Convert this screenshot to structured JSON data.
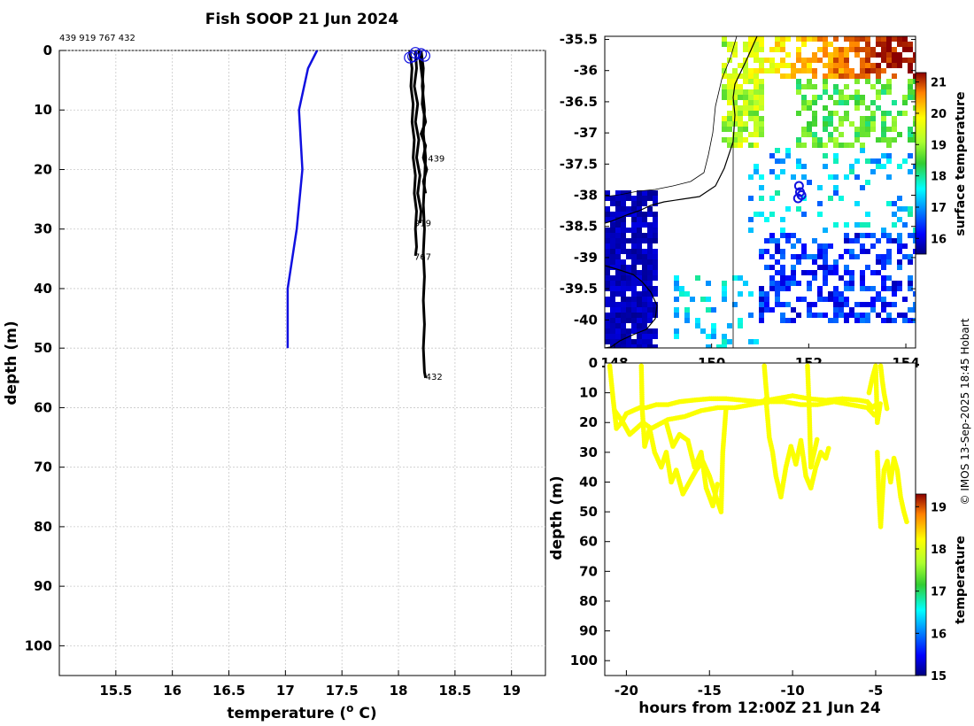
{
  "title": "Fish SOOP 21 Jun 2024",
  "profile_ids_text": "439 919 767 432",
  "credit": "© IMOS 13-Sep-2025 18:45 Hobart",
  "chart_data": [
    {
      "id": "profile",
      "type": "line",
      "xlabel_prefix": "temperature (",
      "xlabel_sup": "o",
      "xlabel_suffix": " C)",
      "ylabel": "depth (m)",
      "xlim": [
        15,
        19.3
      ],
      "ylim": [
        0,
        105
      ],
      "y_inverted": true,
      "grid": true,
      "xticks": [
        15.5,
        16,
        16.5,
        17,
        17.5,
        18,
        18.5,
        19
      ],
      "yticks": [
        0,
        10,
        20,
        30,
        40,
        50,
        60,
        70,
        80,
        90,
        100
      ],
      "climatology": {
        "name": "climatology",
        "color": "#1010e0",
        "points": [
          [
            17.28,
            0
          ],
          [
            17.2,
            3
          ],
          [
            17.12,
            10
          ],
          [
            17.15,
            20
          ],
          [
            17.1,
            30
          ],
          [
            17.02,
            40
          ],
          [
            17.02,
            50
          ]
        ]
      },
      "profiles": [
        {
          "id": "439",
          "label": "439",
          "label_at": [
            18.26,
            18.7
          ],
          "points": [
            [
              18.18,
              0
            ],
            [
              18.2,
              3
            ],
            [
              18.22,
              6
            ],
            [
              18.21,
              9
            ],
            [
              18.24,
              12
            ],
            [
              18.2,
              14
            ],
            [
              18.24,
              16
            ],
            [
              18.22,
              18
            ],
            [
              18.25,
              20
            ],
            [
              18.22,
              22
            ],
            [
              18.24,
              24
            ]
          ]
        },
        {
          "id": "919",
          "label": "919",
          "label_at": [
            18.14,
            29.5
          ],
          "points": [
            [
              18.15,
              0
            ],
            [
              18.16,
              3
            ],
            [
              18.14,
              6
            ],
            [
              18.17,
              9
            ],
            [
              18.15,
              12
            ],
            [
              18.18,
              15
            ],
            [
              18.16,
              18
            ],
            [
              18.19,
              21
            ],
            [
              18.17,
              24
            ],
            [
              18.2,
              27
            ],
            [
              18.19,
              29
            ]
          ]
        },
        {
          "id": "767",
          "label": "767",
          "label_at": [
            18.14,
            35.2
          ],
          "points": [
            [
              18.1,
              0
            ],
            [
              18.12,
              3
            ],
            [
              18.11,
              6
            ],
            [
              18.13,
              9
            ],
            [
              18.12,
              12
            ],
            [
              18.14,
              15
            ],
            [
              18.13,
              18
            ],
            [
              18.15,
              21
            ],
            [
              18.14,
              24
            ],
            [
              18.16,
              27
            ],
            [
              18.15,
              30
            ],
            [
              18.16,
              33
            ],
            [
              18.15,
              34.5
            ]
          ]
        },
        {
          "id": "432",
          "label": "432",
          "label_at": [
            18.24,
            55.3
          ],
          "points": [
            [
              18.2,
              0
            ],
            [
              18.22,
              3
            ],
            [
              18.21,
              6
            ],
            [
              18.23,
              10
            ],
            [
              18.22,
              14
            ],
            [
              18.24,
              18
            ],
            [
              18.23,
              22
            ],
            [
              18.22,
              26
            ],
            [
              18.23,
              30
            ],
            [
              18.22,
              34
            ],
            [
              18.23,
              38
            ],
            [
              18.22,
              42
            ],
            [
              18.23,
              46
            ],
            [
              18.22,
              50
            ],
            [
              18.23,
              54
            ],
            [
              18.24,
              55
            ]
          ]
        }
      ],
      "start_markers": [
        [
          18.1,
          1.2
        ],
        [
          18.13,
          1.0
        ],
        [
          18.2,
          0.6
        ],
        [
          18.23,
          0.9
        ],
        [
          18.15,
          0.4
        ]
      ]
    },
    {
      "id": "map",
      "type": "heatmap",
      "colorbar_label": "surface temperature",
      "colorbar_range": [
        15.5,
        21.3
      ],
      "colorbar_ticks": [
        16,
        17,
        18,
        19,
        20,
        21
      ],
      "xlim": [
        147.8,
        154.2
      ],
      "ylim": [
        -40.45,
        -35.45
      ],
      "xticks": [
        148,
        150,
        152,
        154
      ],
      "xtick_labels": [
        "148",
        "150",
        "152",
        "154"
      ],
      "yticks": [
        -35.5,
        -36,
        -36.5,
        -37,
        -37.5,
        -38,
        -38.5,
        -39,
        -39.5,
        -40
      ],
      "profile_locations": [
        [
          151.8,
          -37.85
        ],
        [
          151.78,
          -38.05
        ],
        [
          151.85,
          -38.0
        ],
        [
          151.82,
          -37.95
        ]
      ],
      "track_color": "#1010e0"
    },
    {
      "id": "timeseries",
      "type": "scatter",
      "xlabel": "hours from 12:00Z 21 Jun 24",
      "ylabel": "depth (m)",
      "colorbar_label": "temperature",
      "colorbar_range": [
        15,
        19.3
      ],
      "colorbar_ticks": [
        15,
        16,
        17,
        18,
        19
      ],
      "xlim": [
        -21.3,
        -2.6
      ],
      "ylim": [
        0,
        105
      ],
      "y_inverted": true,
      "xticks": [
        -20,
        -15,
        -10,
        -5
      ],
      "yticks": [
        0,
        10,
        20,
        30,
        40,
        50,
        60,
        70,
        80,
        90,
        100
      ],
      "point_temperature": 18.2,
      "segments": [
        [
          [
            -21,
            1
          ],
          [
            -20.8,
            12
          ],
          [
            -20.6,
            22
          ],
          [
            -20.3,
            20
          ],
          [
            -20.0,
            17
          ],
          [
            -19.6,
            16
          ],
          [
            -19.2,
            15
          ],
          [
            -18.8,
            15
          ],
          [
            -18.2,
            14
          ],
          [
            -17.5,
            14
          ],
          [
            -16.8,
            13
          ],
          [
            -16.0,
            12.5
          ],
          [
            -15.0,
            12
          ],
          [
            -14.0,
            12
          ],
          [
            -13.0,
            12.5
          ],
          [
            -12.0,
            13
          ],
          [
            -11.0,
            12
          ],
          [
            -10.0,
            11
          ],
          [
            -9.0,
            12
          ],
          [
            -8.0,
            12.5
          ],
          [
            -7.0,
            12
          ],
          [
            -6.0,
            12.5
          ],
          [
            -5.5,
            13
          ],
          [
            -5.2,
            15
          ],
          [
            -5.0,
            14
          ]
        ],
        [
          [
            -20.7,
            16
          ],
          [
            -20.2,
            20
          ],
          [
            -19.8,
            24
          ],
          [
            -19.0,
            20
          ],
          [
            -18.5,
            22
          ],
          [
            -17.5,
            19
          ],
          [
            -16.5,
            18
          ],
          [
            -15.5,
            16
          ],
          [
            -14.5,
            15
          ],
          [
            -13.5,
            15
          ],
          [
            -12.5,
            14
          ],
          [
            -11.5,
            13
          ],
          [
            -10.5,
            13
          ],
          [
            -9.5,
            14
          ],
          [
            -8.5,
            14
          ],
          [
            -7.5,
            13
          ],
          [
            -6.5,
            14
          ],
          [
            -5.5,
            15
          ],
          [
            -5.0,
            18
          ]
        ],
        [
          [
            -19.1,
            1
          ],
          [
            -19.05,
            15
          ],
          [
            -18.9,
            28
          ],
          [
            -18.6,
            22
          ],
          [
            -18.3,
            30
          ],
          [
            -17.9,
            35
          ],
          [
            -17.6,
            30
          ],
          [
            -17.3,
            40
          ],
          [
            -17.0,
            36
          ],
          [
            -16.6,
            44
          ],
          [
            -16.2,
            40
          ],
          [
            -15.8,
            36
          ],
          [
            -15.4,
            33
          ],
          [
            -15.0,
            38
          ],
          [
            -14.6,
            45
          ],
          [
            -14.3,
            50
          ],
          [
            -14.2,
            30
          ],
          [
            -14.0,
            15
          ]
        ],
        [
          [
            -17.6,
            20
          ],
          [
            -17.2,
            28
          ],
          [
            -16.8,
            24
          ],
          [
            -16.3,
            26
          ],
          [
            -15.9,
            35
          ],
          [
            -15.5,
            30
          ],
          [
            -15.2,
            42
          ],
          [
            -14.8,
            48
          ],
          [
            -14.5,
            40
          ]
        ],
        [
          [
            -11.6,
            12
          ],
          [
            -11.4,
            25
          ],
          [
            -11.2,
            30
          ],
          [
            -11.0,
            38
          ],
          [
            -10.7,
            45
          ],
          [
            -10.4,
            35
          ],
          [
            -10.1,
            28
          ],
          [
            -9.8,
            34
          ],
          [
            -9.5,
            26
          ],
          [
            -9.2,
            38
          ],
          [
            -8.9,
            42
          ],
          [
            -8.6,
            35
          ],
          [
            -8.3,
            30
          ],
          [
            -8.0,
            32
          ],
          [
            -7.8,
            28
          ]
        ],
        [
          [
            -9.1,
            1
          ],
          [
            -9.0,
            15
          ],
          [
            -8.9,
            35
          ],
          [
            -8.7,
            30
          ],
          [
            -8.5,
            25
          ]
        ],
        [
          [
            -11.7,
            1
          ],
          [
            -11.6,
            8
          ],
          [
            -11.5,
            14
          ]
        ],
        [
          [
            -5.4,
            10
          ],
          [
            -5.2,
            5
          ],
          [
            -5.0,
            1
          ],
          [
            -4.9,
            20
          ],
          [
            -4.7,
            13
          ]
        ],
        [
          [
            -4.9,
            30
          ],
          [
            -4.8,
            45
          ],
          [
            -4.7,
            55
          ],
          [
            -4.5,
            36
          ],
          [
            -4.3,
            33
          ],
          [
            -4.1,
            40
          ],
          [
            -3.9,
            32
          ],
          [
            -3.7,
            36
          ],
          [
            -3.5,
            45
          ],
          [
            -3.3,
            50
          ],
          [
            -3.1,
            54
          ]
        ],
        [
          [
            -4.7,
            1
          ],
          [
            -4.6,
            6
          ],
          [
            -4.5,
            10
          ],
          [
            -4.3,
            16
          ]
        ]
      ]
    }
  ]
}
